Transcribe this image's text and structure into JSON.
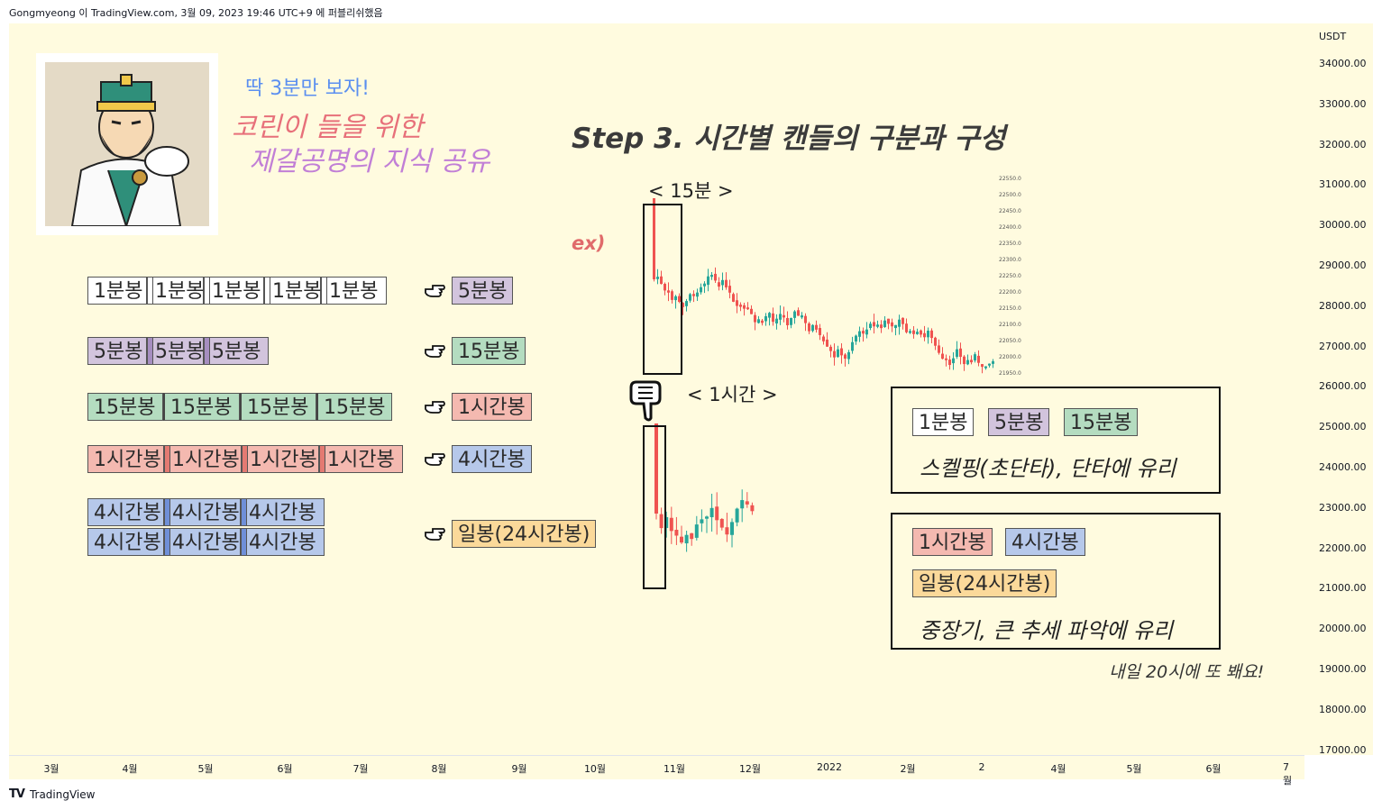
{
  "header": {
    "publisher": "Gongmyeong 이 TradingView.com, 3월 09, 2023 19:46 UTC+9 에 퍼블리쉬했음"
  },
  "price_axis": {
    "unit": "USDT",
    "ticks": [
      "34000.00",
      "33000.00",
      "32000.00",
      "31000.00",
      "30000.00",
      "29000.00",
      "28000.00",
      "27000.00",
      "26000.00",
      "25000.00",
      "24000.00",
      "23000.00",
      "22000.00",
      "21000.00",
      "20000.00",
      "19000.00",
      "18000.00",
      "17000.00"
    ]
  },
  "time_axis": {
    "ticks": [
      "3월",
      "4월",
      "5월",
      "6월",
      "7월",
      "8월",
      "9월",
      "10월",
      "11월",
      "12월",
      "2022",
      "2월",
      "2",
      "4월",
      "5월",
      "6월",
      "7월"
    ]
  },
  "footer": {
    "brand": "TradingView"
  },
  "headlines": {
    "line1": "딱 3분만 보자!",
    "line2": "코린이 들을 위한",
    "line3": "제갈공명의 지식 공유",
    "step_title": "Step 3. 시간별 캔들의 구분과 구성"
  },
  "rows": [
    {
      "parts": [
        "1분봉",
        "1분봉",
        "1분봉",
        "1분봉",
        "1분봉"
      ],
      "result": "5분봉"
    },
    {
      "parts": [
        "5분봉",
        "5분봉",
        "5분봉"
      ],
      "result": "15분봉"
    },
    {
      "parts": [
        "15분봉",
        "15분봉",
        "15분봉",
        "15분봉"
      ],
      "result": "1시간봉"
    },
    {
      "parts": [
        "1시간봉",
        "1시간봉",
        "1시간봉",
        "1시간봉"
      ],
      "result": "4시간봉"
    },
    {
      "parts": [
        "4시간봉",
        "4시간봉",
        "4시간봉"
      ],
      "parts2": [
        "4시간봉",
        "4시간봉",
        "4시간봉"
      ],
      "result": "일봉(24시간봉)"
    }
  ],
  "example": {
    "ex_label": "ex)",
    "tf15": "< 15분 >",
    "tf1h": "< 1시간 >",
    "mini_scale": [
      "22550.0",
      "22500.0",
      "22450.0",
      "22400.0",
      "22350.0",
      "22300.0",
      "22250.0",
      "22200.0",
      "22150.0",
      "22100.0",
      "22050.0",
      "22000.0",
      "21950.0"
    ]
  },
  "info_short": {
    "tags": [
      "1분봉",
      "5분봉",
      "15분봉"
    ],
    "text": "스켈핑(초단타), 단타에 유리"
  },
  "info_long": {
    "tags": [
      "1시간봉",
      "4시간봉"
    ],
    "tag2": "일봉(24시간봉)",
    "text": "중장기, 큰 추세 파악에 유리"
  },
  "tomorrow": "내일 20시에 또 봬요!",
  "colors": {
    "background": "#fffbdf",
    "up_candle": "#26a69a",
    "down_candle": "#ef5350",
    "purple_tag": "#d2c4dd",
    "green_tag": "#b4dcc0",
    "pink_tag": "#f4b9b0",
    "blue_tag": "#b6c8ea",
    "orange_tag": "#fbd99a"
  },
  "icons": [
    "pointing-hand-icon",
    "down-pointing-hand-icon",
    "tradingview-logo-icon"
  ]
}
